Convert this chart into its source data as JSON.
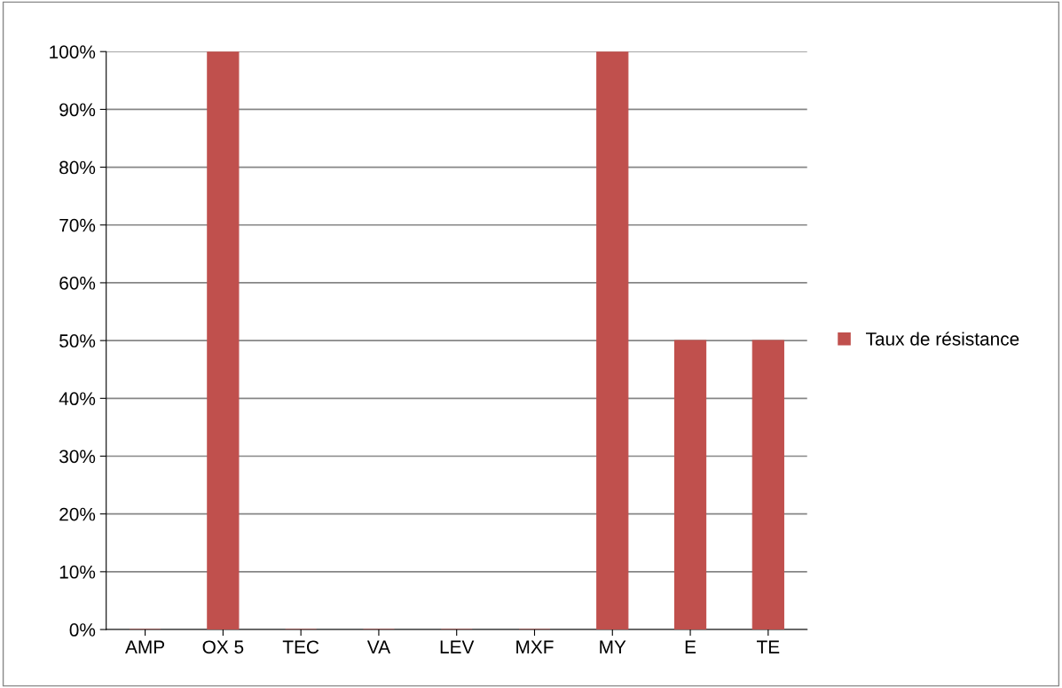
{
  "chart_data": {
    "type": "bar",
    "categories": [
      "AMP",
      "OX 5",
      "TEC",
      "VA",
      "LEV",
      "MXF",
      "MY",
      "E",
      "TE"
    ],
    "series": [
      {
        "name": "Taux de résistance",
        "color": "#c0504d",
        "values": [
          0,
          100,
          0,
          0,
          0,
          0,
          100,
          50,
          50
        ]
      }
    ],
    "ylim": [
      0,
      100
    ],
    "yticks": [
      {
        "value": 0,
        "label": "0%"
      },
      {
        "value": 10,
        "label": "10%"
      },
      {
        "value": 20,
        "label": "20%"
      },
      {
        "value": 30,
        "label": "30%"
      },
      {
        "value": 40,
        "label": "40%"
      },
      {
        "value": 50,
        "label": "50%"
      },
      {
        "value": 60,
        "label": "60%"
      },
      {
        "value": 70,
        "label": "70%"
      },
      {
        "value": 80,
        "label": "80%"
      },
      {
        "value": 90,
        "label": "90%"
      },
      {
        "value": 100,
        "label": "100%"
      }
    ],
    "grid": "y",
    "legend": "right"
  }
}
